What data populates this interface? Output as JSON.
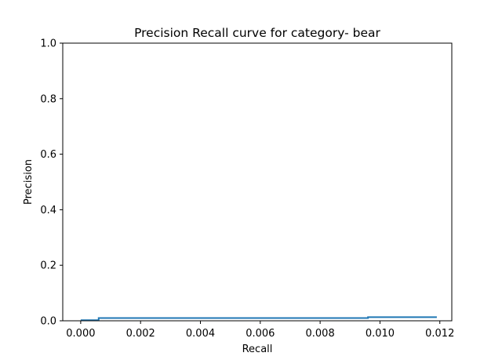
{
  "chart_data": {
    "type": "line",
    "title": "Precision Recall curve for category- bear",
    "xlabel": "Recall",
    "ylabel": "Precision",
    "xlim": [
      -0.0006,
      0.0124
    ],
    "ylim": [
      0,
      1.0
    ],
    "xticks": [
      0.0,
      0.002,
      0.004,
      0.006,
      0.008,
      0.01,
      0.012
    ],
    "xtick_labels": [
      "0.000",
      "0.002",
      "0.004",
      "0.006",
      "0.008",
      "0.010",
      "0.012"
    ],
    "yticks": [
      0.0,
      0.2,
      0.4,
      0.6,
      0.8,
      1.0
    ],
    "ytick_labels": [
      "0.0",
      "0.2",
      "0.4",
      "0.6",
      "0.8",
      "1.0"
    ],
    "grid": false,
    "line_color": "#1f77b4",
    "series": [
      {
        "drawstyle": "steps-post",
        "x": [
          0.0,
          0.0006,
          0.0096,
          0.0119
        ],
        "y": [
          0.002,
          0.01,
          0.013,
          0.013
        ]
      }
    ]
  }
}
